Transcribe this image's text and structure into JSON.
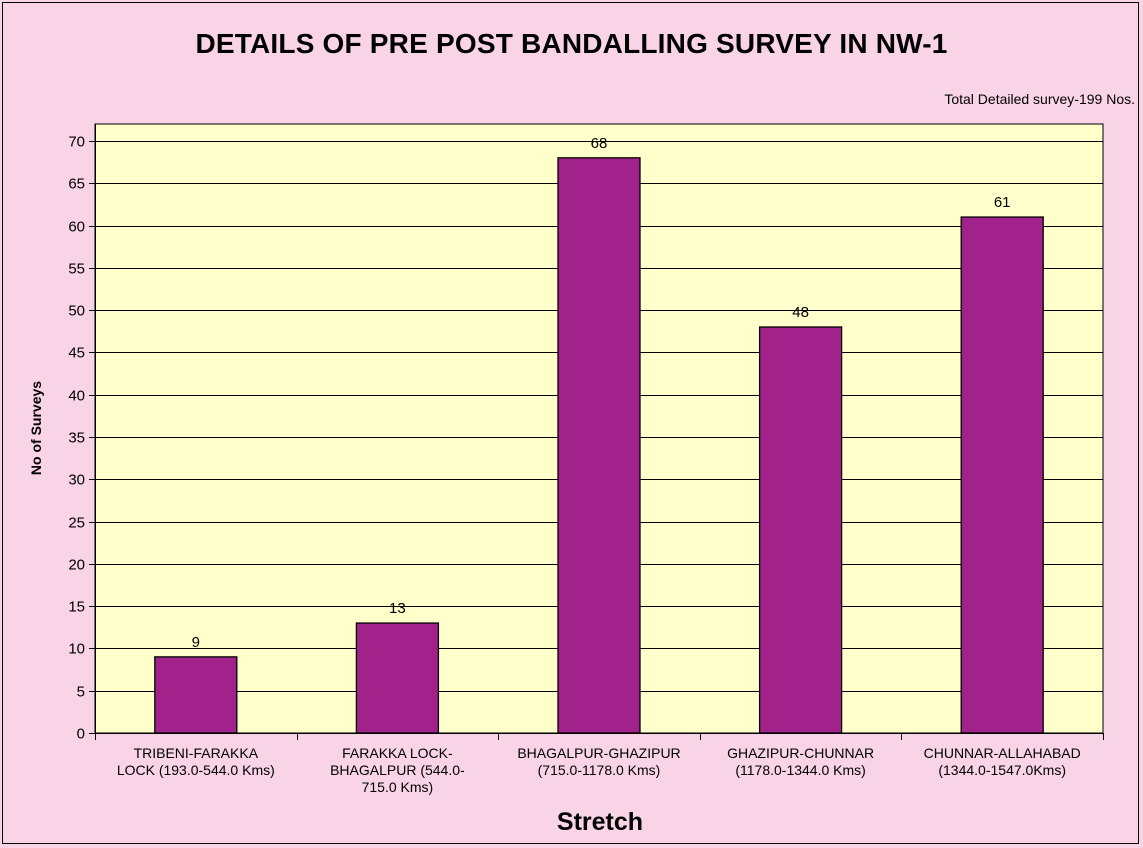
{
  "chart_data": {
    "type": "bar",
    "title": "DETAILS OF PRE POST BANDALLING SURVEY IN NW-1",
    "annotation": "Total Detailed survey-199 Nos.",
    "xlabel": "Stretch",
    "ylabel": "No of Surveys",
    "categories": [
      "TRIBENI-FARAKKA LOCK (193.0-544.0 Kms)",
      "FARAKKA LOCK-BHAGALPUR (544.0-715.0 Kms)",
      "BHAGALPUR-GHAZIPUR (715.0-1178.0 Kms)",
      "GHAZIPUR-CHUNNAR (1178.0-1344.0 Kms)",
      "CHUNNAR-ALLAHABAD (1344.0-1547.0Kms)"
    ],
    "category_lines": [
      [
        "TRIBENI-FARAKKA",
        "LOCK (193.0-544.0 Kms)"
      ],
      [
        "FARAKKA LOCK-",
        "BHAGALPUR (544.0-",
        "715.0 Kms)"
      ],
      [
        "BHAGALPUR-GHAZIPUR",
        "(715.0-1178.0 Kms)"
      ],
      [
        "GHAZIPUR-CHUNNAR",
        "(1178.0-1344.0 Kms)"
      ],
      [
        "CHUNNAR-ALLAHABAD",
        "(1344.0-1547.0Kms)"
      ]
    ],
    "values": [
      9,
      13,
      68,
      48,
      61
    ],
    "ylim": [
      0,
      72
    ],
    "yticks": [
      0,
      5,
      10,
      15,
      20,
      25,
      30,
      35,
      40,
      45,
      50,
      55,
      60,
      65,
      70
    ],
    "grid": true,
    "legend": "none",
    "colors": {
      "bar": "#a2228b",
      "plot_background": "#ffffcc",
      "page_background": "#f9d3e6"
    }
  }
}
